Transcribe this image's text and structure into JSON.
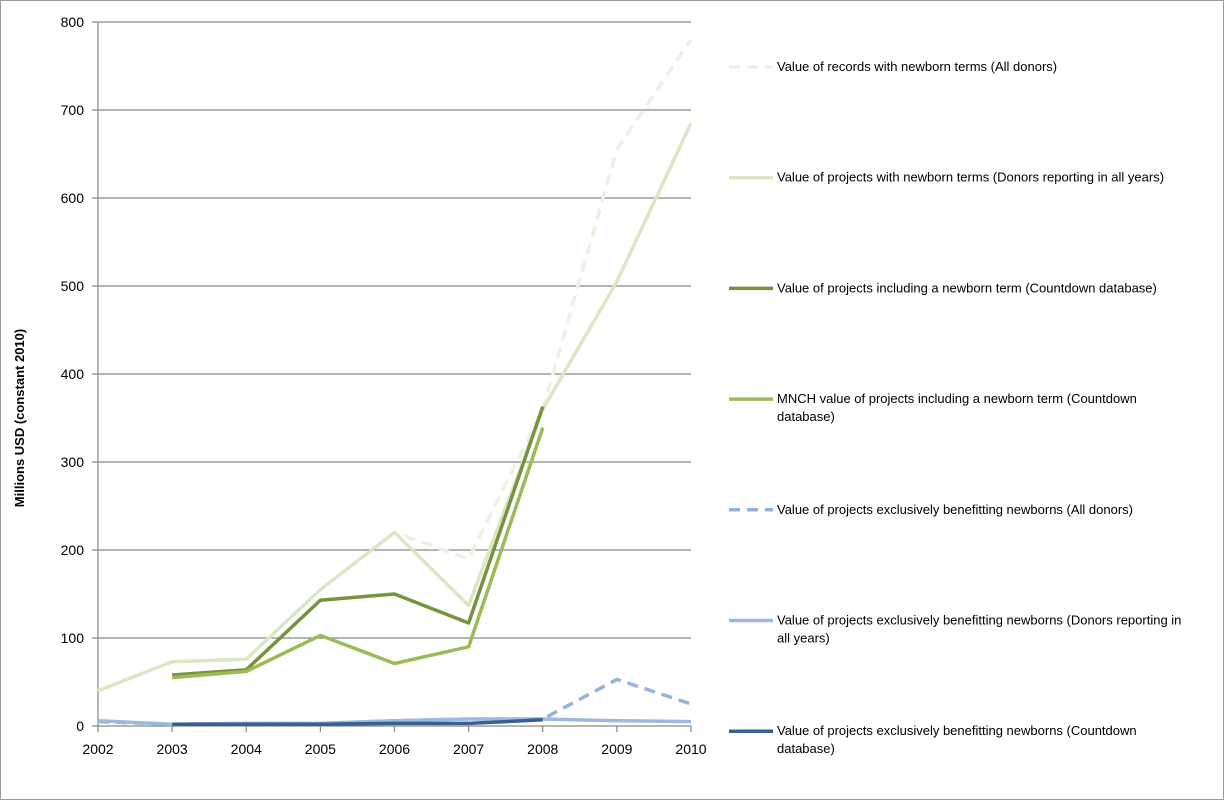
{
  "chart_data": {
    "type": "line",
    "title": "",
    "xlabel": "",
    "ylabel": "Millions USD (constant 2010)",
    "x": [
      2002,
      2003,
      2004,
      2005,
      2006,
      2007,
      2008,
      2009,
      2010
    ],
    "x_tick_labels": [
      "2002",
      "2003",
      "2004",
      "2005",
      "2006",
      "2007",
      "2008",
      "2009",
      "2010"
    ],
    "ylim": [
      0,
      800
    ],
    "y_ticks": [
      0,
      100,
      200,
      300,
      400,
      500,
      600,
      700,
      800
    ],
    "y_tick_labels": [
      "0",
      "100",
      "200",
      "300",
      "400",
      "500",
      "600",
      "700",
      "800"
    ],
    "grid": "horizontal",
    "legend_position": "right",
    "series": [
      {
        "name": "Value of records with newborn terms (All donors)",
        "legend_lines": [
          "Value of records with newborn terms (All donors)"
        ],
        "color": "#eef0e2",
        "dash": "dashed",
        "values": [
          40,
          73,
          76,
          155,
          220,
          190,
          360,
          655,
          780
        ]
      },
      {
        "name": "Value of projects with newborn terms (Donors reporting in all years)",
        "legend_lines": [
          "Value of projects with newborn terms (Donors reporting in all years)"
        ],
        "color": "#dde6c4",
        "dash": "solid",
        "values": [
          40,
          73,
          76,
          155,
          220,
          137,
          360,
          505,
          685
        ]
      },
      {
        "name": "Value of projects including a newborn term (Countdown database)",
        "legend_lines": [
          "Value of projects including a newborn term (Countdown database)"
        ],
        "color": "#77933c",
        "dash": "solid",
        "values": [
          null,
          58,
          64,
          143,
          150,
          117,
          363,
          null,
          null
        ]
      },
      {
        "name": "MNCH value of projects including a newborn term (Countdown database)",
        "legend_lines": [
          "MNCH value of projects including a newborn term (Countdown",
          "database)"
        ],
        "color": "#9bbb59",
        "dash": "solid",
        "values": [
          null,
          55,
          62,
          103,
          71,
          90,
          339,
          null,
          null
        ]
      },
      {
        "name": "Value of projects exclusively benefitting newborns (All donors)",
        "legend_lines": [
          "Value of projects exclusively benefitting newborns (All donors)"
        ],
        "color": "#95b3d7",
        "dash": "dashed",
        "values": [
          5,
          2,
          3,
          3,
          6,
          8,
          8,
          53,
          25
        ]
      },
      {
        "name": "Value of projects exclusively benefitting newborns (Donors reporting in all years)",
        "legend_lines": [
          "Value of projects exclusively benefitting newborns (Donors reporting in",
          "all years)"
        ],
        "color": "#9fb8df",
        "dash": "solid",
        "values": [
          6,
          2,
          3,
          3,
          6,
          8,
          8,
          6,
          5
        ]
      },
      {
        "name": "Value of projects exclusively benefitting newborns (Countdown database)",
        "legend_lines": [
          "Value of projects exclusively benefitting newborns (Countdown",
          "database)"
        ],
        "color": "#376092",
        "dash": "solid",
        "values": [
          null,
          2,
          2,
          2,
          3,
          3,
          7,
          null,
          null
        ]
      }
    ]
  }
}
